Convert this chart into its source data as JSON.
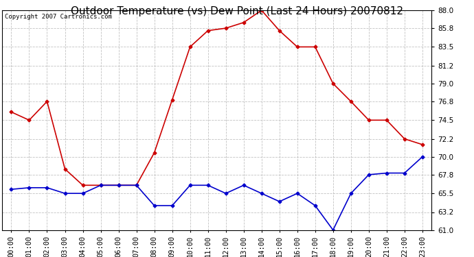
{
  "title": "Outdoor Temperature (vs) Dew Point (Last 24 Hours) 20070812",
  "copyright": "Copyright 2007 Cartronics.com",
  "hours": [
    "00:00",
    "01:00",
    "02:00",
    "03:00",
    "04:00",
    "05:00",
    "06:00",
    "07:00",
    "08:00",
    "09:00",
    "10:00",
    "11:00",
    "12:00",
    "13:00",
    "14:00",
    "15:00",
    "16:00",
    "17:00",
    "18:00",
    "19:00",
    "20:00",
    "21:00",
    "22:00",
    "23:00"
  ],
  "temp": [
    75.5,
    74.5,
    76.8,
    68.5,
    66.5,
    66.5,
    66.5,
    66.5,
    70.5,
    77.0,
    83.5,
    85.5,
    85.8,
    86.5,
    88.0,
    85.5,
    83.5,
    83.5,
    79.0,
    76.8,
    74.5,
    74.5,
    72.2,
    71.5
  ],
  "dew": [
    66.0,
    66.2,
    66.2,
    65.5,
    65.5,
    66.5,
    66.5,
    66.5,
    64.0,
    64.0,
    66.5,
    66.5,
    65.5,
    66.5,
    65.5,
    64.5,
    65.5,
    64.0,
    61.0,
    65.5,
    67.8,
    68.0,
    68.0,
    70.0
  ],
  "temp_color": "#cc0000",
  "dew_color": "#0000cc",
  "grid_color": "#bbbbbb",
  "bg_color": "#ffffff",
  "ylim_min": 61.0,
  "ylim_max": 88.0,
  "yticks": [
    61.0,
    63.2,
    65.5,
    67.8,
    70.0,
    72.2,
    74.5,
    76.8,
    79.0,
    81.2,
    83.5,
    85.8,
    88.0
  ],
  "title_fontsize": 11,
  "copyright_fontsize": 6.5,
  "tick_fontsize": 7.5,
  "marker": "D",
  "marker_size": 2.5,
  "linewidth": 1.2
}
